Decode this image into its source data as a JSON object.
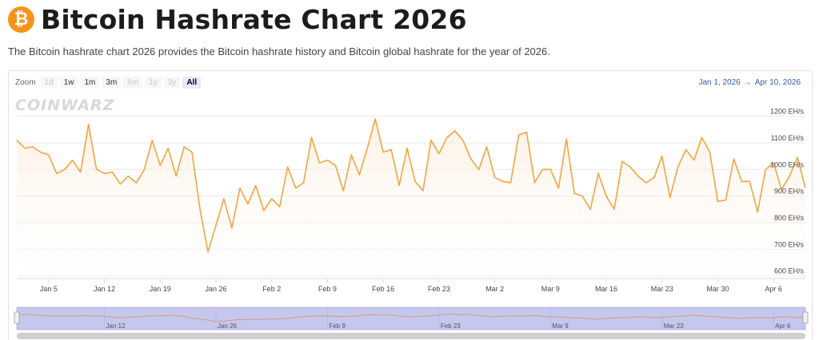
{
  "header": {
    "icon_glyph": "₿",
    "title": "Bitcoin Hashrate Chart 2026",
    "subtitle": "The Bitcoin hashrate chart 2026 provides the Bitcoin hashrate history and Bitcoin global hashrate for the year of 2026."
  },
  "controls": {
    "zoom_label": "Zoom",
    "buttons": [
      {
        "label": "1d",
        "state": "disabled"
      },
      {
        "label": "1w",
        "state": "enabled"
      },
      {
        "label": "1m",
        "state": "enabled"
      },
      {
        "label": "3m",
        "state": "enabled"
      },
      {
        "label": "6m",
        "state": "disabled"
      },
      {
        "label": "1y",
        "state": "disabled"
      },
      {
        "label": "3y",
        "state": "disabled"
      },
      {
        "label": "All",
        "state": "active"
      }
    ],
    "range_from": "Jan 1, 2026",
    "range_arrow": "→",
    "range_to": "Apr 10, 2026"
  },
  "watermark": "COINWARZ",
  "colors": {
    "line": "#f2a541",
    "area_top": "#fbe6cf",
    "navigator_fill": "#c5c7ee",
    "navigator_line": "#d99a7a"
  },
  "chart_data": {
    "type": "line",
    "x_start": "2026-01-01",
    "x_end": "2026-04-10",
    "x_ticks": [
      {
        "date": "2026-01-05",
        "label": "Jan 5"
      },
      {
        "date": "2026-01-12",
        "label": "Jan 12"
      },
      {
        "date": "2026-01-19",
        "label": "Jan 19"
      },
      {
        "date": "2026-01-26",
        "label": "Jan 26"
      },
      {
        "date": "2026-02-02",
        "label": "Feb 2"
      },
      {
        "date": "2026-02-09",
        "label": "Feb 9"
      },
      {
        "date": "2026-02-16",
        "label": "Feb 16"
      },
      {
        "date": "2026-02-23",
        "label": "Feb 23"
      },
      {
        "date": "2026-03-02",
        "label": "Mar 2"
      },
      {
        "date": "2026-03-09",
        "label": "Mar 9"
      },
      {
        "date": "2026-03-16",
        "label": "Mar 16"
      },
      {
        "date": "2026-03-23",
        "label": "Mar 23"
      },
      {
        "date": "2026-03-30",
        "label": "Mar 30"
      },
      {
        "date": "2026-04-06",
        "label": "Apr 6"
      }
    ],
    "navigator_ticks": [
      {
        "date": "2026-01-12",
        "label": "Jan 12"
      },
      {
        "date": "2026-01-26",
        "label": "Jan 26"
      },
      {
        "date": "2026-02-09",
        "label": "Feb 9"
      },
      {
        "date": "2026-02-23",
        "label": "Feb 23"
      },
      {
        "date": "2026-03-09",
        "label": "Mar 9"
      },
      {
        "date": "2026-03-23",
        "label": "Mar 23"
      },
      {
        "date": "2026-04-06",
        "label": "Apr 6"
      }
    ],
    "y_ticks": [
      {
        "value": 600,
        "label": "600 EH/s"
      },
      {
        "value": 700,
        "label": "700 EH/s"
      },
      {
        "value": 800,
        "label": "800 EH/s"
      },
      {
        "value": 900,
        "label": "900 EH/s"
      },
      {
        "value": 1000,
        "label": "1000 EH/s"
      },
      {
        "value": 1100,
        "label": "1100 EH/s"
      },
      {
        "value": 1200,
        "label": "1200 EH/s"
      }
    ],
    "ylim": [
      590,
      1250
    ],
    "grid": true,
    "series": [
      {
        "unit": "EH/s",
        "points": [
          [
            "2026-01-01",
            1110
          ],
          [
            "2026-01-02",
            1080
          ],
          [
            "2026-01-03",
            1085
          ],
          [
            "2026-01-04",
            1065
          ],
          [
            "2026-01-05",
            1055
          ],
          [
            "2026-01-06",
            985
          ],
          [
            "2026-01-07",
            1000
          ],
          [
            "2026-01-08",
            1035
          ],
          [
            "2026-01-09",
            990
          ],
          [
            "2026-01-10",
            1170
          ],
          [
            "2026-01-11",
            1000
          ],
          [
            "2026-01-12",
            985
          ],
          [
            "2026-01-13",
            990
          ],
          [
            "2026-01-14",
            945
          ],
          [
            "2026-01-15",
            975
          ],
          [
            "2026-01-16",
            950
          ],
          [
            "2026-01-17",
            1000
          ],
          [
            "2026-01-18",
            1110
          ],
          [
            "2026-01-19",
            1015
          ],
          [
            "2026-01-20",
            1080
          ],
          [
            "2026-01-21",
            975
          ],
          [
            "2026-01-22",
            1085
          ],
          [
            "2026-01-23",
            1065
          ],
          [
            "2026-01-24",
            850
          ],
          [
            "2026-01-25",
            690
          ],
          [
            "2026-01-26",
            790
          ],
          [
            "2026-01-27",
            890
          ],
          [
            "2026-01-28",
            780
          ],
          [
            "2026-01-29",
            930
          ],
          [
            "2026-01-30",
            870
          ],
          [
            "2026-01-31",
            940
          ],
          [
            "2026-02-01",
            845
          ],
          [
            "2026-02-02",
            890
          ],
          [
            "2026-02-03",
            860
          ],
          [
            "2026-02-04",
            1010
          ],
          [
            "2026-02-05",
            930
          ],
          [
            "2026-02-06",
            950
          ],
          [
            "2026-02-07",
            1120
          ],
          [
            "2026-02-08",
            1025
          ],
          [
            "2026-02-09",
            1035
          ],
          [
            "2026-02-10",
            1015
          ],
          [
            "2026-02-11",
            920
          ],
          [
            "2026-02-12",
            1055
          ],
          [
            "2026-02-13",
            980
          ],
          [
            "2026-02-14",
            1080
          ],
          [
            "2026-02-15",
            1190
          ],
          [
            "2026-02-16",
            1065
          ],
          [
            "2026-02-17",
            1075
          ],
          [
            "2026-02-18",
            940
          ],
          [
            "2026-02-19",
            1080
          ],
          [
            "2026-02-20",
            955
          ],
          [
            "2026-02-21",
            920
          ],
          [
            "2026-02-22",
            1110
          ],
          [
            "2026-02-23",
            1060
          ],
          [
            "2026-02-24",
            1120
          ],
          [
            "2026-02-25",
            1145
          ],
          [
            "2026-02-26",
            1110
          ],
          [
            "2026-02-27",
            1040
          ],
          [
            "2026-02-28",
            1000
          ],
          [
            "2026-03-01",
            1085
          ],
          [
            "2026-03-02",
            970
          ],
          [
            "2026-03-03",
            955
          ],
          [
            "2026-03-04",
            950
          ],
          [
            "2026-03-05",
            1130
          ],
          [
            "2026-03-06",
            1140
          ],
          [
            "2026-03-07",
            950
          ],
          [
            "2026-03-08",
            1000
          ],
          [
            "2026-03-09",
            1000
          ],
          [
            "2026-03-10",
            930
          ],
          [
            "2026-03-11",
            1115
          ],
          [
            "2026-03-12",
            910
          ],
          [
            "2026-03-13",
            900
          ],
          [
            "2026-03-14",
            850
          ],
          [
            "2026-03-15",
            985
          ],
          [
            "2026-03-16",
            900
          ],
          [
            "2026-03-17",
            850
          ],
          [
            "2026-03-18",
            1030
          ],
          [
            "2026-03-19",
            1010
          ],
          [
            "2026-03-20",
            975
          ],
          [
            "2026-03-21",
            950
          ],
          [
            "2026-03-22",
            970
          ],
          [
            "2026-03-23",
            1050
          ],
          [
            "2026-03-24",
            895
          ],
          [
            "2026-03-25",
            1010
          ],
          [
            "2026-03-26",
            1075
          ],
          [
            "2026-03-27",
            1035
          ],
          [
            "2026-03-28",
            1120
          ],
          [
            "2026-03-29",
            1065
          ],
          [
            "2026-03-30",
            880
          ],
          [
            "2026-03-31",
            885
          ],
          [
            "2026-04-01",
            1040
          ],
          [
            "2026-04-02",
            955
          ],
          [
            "2026-04-03",
            955
          ],
          [
            "2026-04-04",
            840
          ],
          [
            "2026-04-05",
            1000
          ],
          [
            "2026-04-06",
            1025
          ],
          [
            "2026-04-07",
            925
          ],
          [
            "2026-04-08",
            975
          ],
          [
            "2026-04-09",
            1045
          ],
          [
            "2026-04-10",
            930
          ]
        ]
      }
    ]
  }
}
